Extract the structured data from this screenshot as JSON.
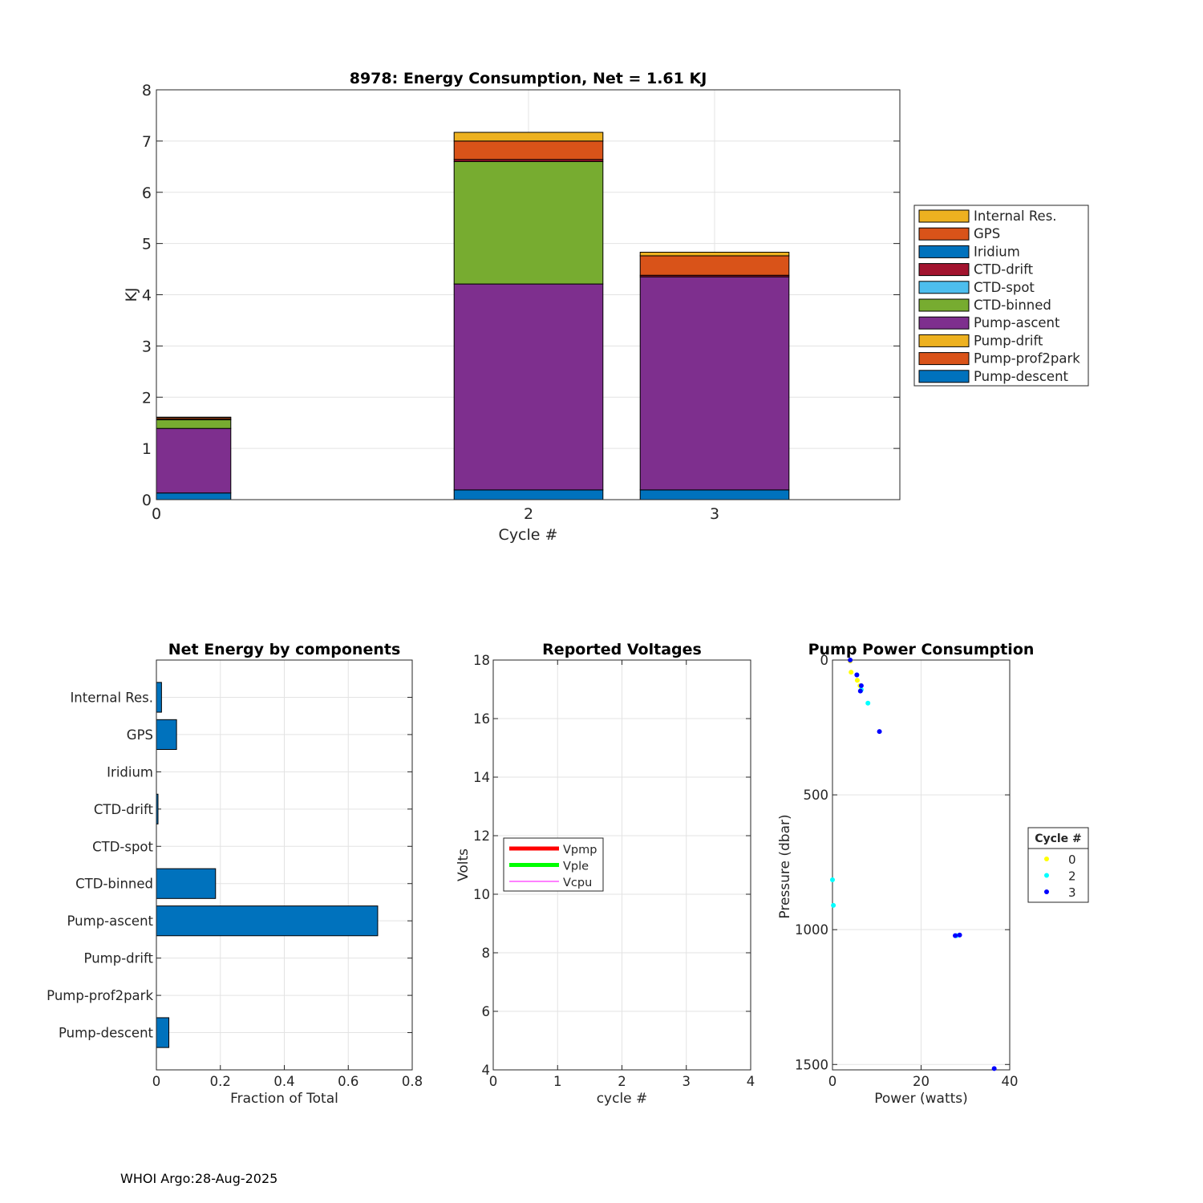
{
  "footer": "WHOI Argo:28-Aug-2025",
  "chart_data": [
    {
      "type": "bar",
      "stacked": true,
      "title": "8978: Energy Consumption,  Net =   1.61 KJ",
      "xlabel": "Cycle #",
      "ylabel": "KJ",
      "xlim": [
        0,
        4
      ],
      "ylim": [
        0,
        8
      ],
      "x_ticks": [
        0,
        2,
        3
      ],
      "y_ticks": [
        0,
        1,
        2,
        3,
        4,
        5,
        6,
        7,
        8
      ],
      "grid": true,
      "legend_position": "outside-right",
      "categories": [
        0,
        2,
        3
      ],
      "series": [
        {
          "name": "Pump-descent",
          "color": "#0072BD",
          "values": [
            0.13,
            0.19,
            0.19
          ]
        },
        {
          "name": "Pump-prof2park",
          "color": "#D95319",
          "values": [
            0,
            0,
            0
          ]
        },
        {
          "name": "Pump-drift",
          "color": "#EDB120",
          "values": [
            0,
            0,
            0
          ]
        },
        {
          "name": "Pump-ascent",
          "color": "#7E2F8E",
          "values": [
            1.26,
            4.02,
            4.16
          ]
        },
        {
          "name": "CTD-binned",
          "color": "#77AC30",
          "values": [
            0.17,
            2.39,
            0
          ]
        },
        {
          "name": "CTD-spot",
          "color": "#4DBEEE",
          "values": [
            0,
            0,
            0
          ]
        },
        {
          "name": "CTD-drift",
          "color": "#A2142F",
          "values": [
            0.01,
            0.04,
            0.03
          ]
        },
        {
          "name": "Iridium",
          "color": "#0072BD",
          "values": [
            0,
            0,
            0
          ]
        },
        {
          "name": "GPS",
          "color": "#D95319",
          "values": [
            0.03,
            0.36,
            0.38
          ]
        },
        {
          "name": "Internal Res.",
          "color": "#EDB120",
          "values": [
            0.01,
            0.17,
            0.07
          ]
        }
      ]
    },
    {
      "type": "bar",
      "orientation": "horizontal",
      "title": "Net Energy by components",
      "xlabel": "Fraction of Total",
      "ylabel": "",
      "xlim": [
        0,
        0.8
      ],
      "x_ticks": [
        "0",
        "0.2",
        "0.4",
        "0.6",
        "0.8"
      ],
      "grid": true,
      "color": "#0072BD",
      "categories": [
        "Internal Res.",
        "GPS",
        "Iridium",
        "CTD-drift",
        "CTD-spot",
        "CTD-binned",
        "Pump-ascent",
        "Pump-drift",
        "Pump-prof2park",
        "Pump-descent"
      ],
      "values": [
        0.016,
        0.063,
        0,
        0.005,
        0,
        0.185,
        0.692,
        0,
        0,
        0.039
      ]
    },
    {
      "type": "line",
      "title": "Reported Voltages",
      "xlabel": "cycle #",
      "ylabel": "Volts",
      "xlim": [
        0,
        4
      ],
      "ylim": [
        4,
        18
      ],
      "x_ticks": [
        0,
        1,
        2,
        3,
        4
      ],
      "y_ticks": [
        4,
        6,
        8,
        10,
        12,
        14,
        16,
        18
      ],
      "grid": true,
      "legend_position": "center-left",
      "series": [
        {
          "name": "Vpmp",
          "color": "#FF0000",
          "values": []
        },
        {
          "name": "Vple",
          "color": "#00FF00",
          "values": []
        },
        {
          "name": "Vcpu",
          "color": "#FF00FF",
          "values": []
        }
      ]
    },
    {
      "type": "scatter",
      "title": "Pump Power Consumption",
      "xlabel": "Power (watts)",
      "ylabel": "Pressure (dbar)",
      "xlim": [
        0,
        40
      ],
      "ylim": [
        1520,
        0
      ],
      "y_reversed": true,
      "x_ticks": [
        0,
        20,
        40
      ],
      "y_ticks": [
        0,
        500,
        1000,
        1500
      ],
      "grid": true,
      "legend_title": "Cycle #",
      "legend_position": "outside-right",
      "series": [
        {
          "name": "0",
          "color": "#FFFF00",
          "points": [
            [
              4,
              3
            ],
            [
              4.2,
              45
            ],
            [
              5.6,
              75
            ],
            [
              6.2,
              95
            ]
          ]
        },
        {
          "name": "2",
          "color": "#00FFFF",
          "points": [
            [
              5.5,
              55
            ],
            [
              6.5,
              110
            ],
            [
              8,
              160
            ],
            [
              0,
              815
            ],
            [
              0.2,
              910
            ],
            [
              28,
              1022
            ]
          ]
        },
        {
          "name": "3",
          "color": "#0000FF",
          "points": [
            [
              4,
              0
            ],
            [
              5.5,
              55
            ],
            [
              6.5,
              95
            ],
            [
              6.3,
              115
            ],
            [
              10.6,
              265
            ],
            [
              27.7,
              1022
            ],
            [
              28.7,
              1020
            ],
            [
              36.5,
              1515
            ]
          ]
        }
      ]
    }
  ]
}
